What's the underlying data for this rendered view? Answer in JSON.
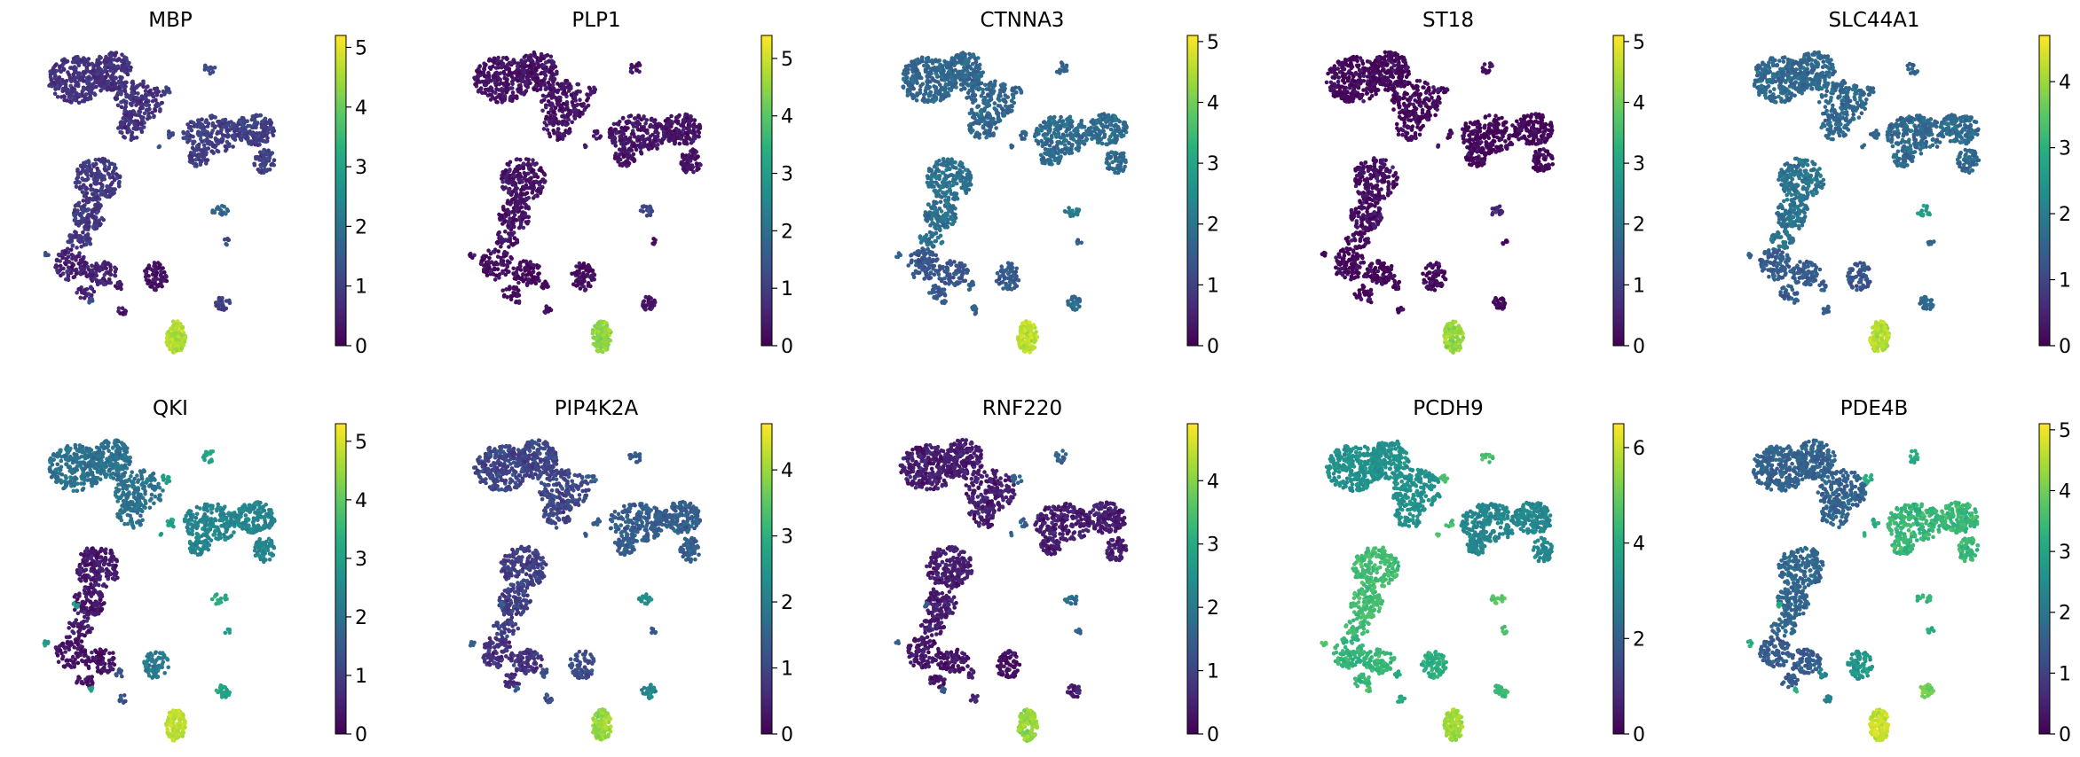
{
  "figure": {
    "description_type": "UMAP gene expression panel grid",
    "colormap": "viridis",
    "colormap_stops": [
      "#440154",
      "#472a7a",
      "#3b518b",
      "#2c718e",
      "#21908d",
      "#27ad81",
      "#5cc863",
      "#aadc32",
      "#fde725"
    ]
  },
  "chart_data": [
    {
      "type": "scatter",
      "title": "MBP",
      "vmin": 0,
      "vmax": 5.2,
      "ticks": [
        0,
        1,
        2,
        3,
        4,
        5
      ],
      "cluster_levels": {
        "A": 0.8,
        "B": 1.0,
        "C": 0.9,
        "D": 0.5,
        "E": 0.2,
        "F": 1.2,
        "G": 0.3,
        "H": 1.7,
        "I": 4.6,
        "J": 1.0
      }
    },
    {
      "type": "scatter",
      "title": "PLP1",
      "vmin": 0,
      "vmax": 5.4,
      "ticks": [
        0,
        1,
        2,
        3,
        4,
        5
      ],
      "cluster_levels": {
        "A": 0.3,
        "B": 0.3,
        "C": 0.3,
        "D": 0.2,
        "E": 0.2,
        "F": 0.3,
        "G": 0.2,
        "H": 1.2,
        "I": 4.5,
        "J": 0.3
      }
    },
    {
      "type": "scatter",
      "title": "CTNNA3",
      "vmin": 0,
      "vmax": 5.1,
      "ticks": [
        0,
        1,
        2,
        3,
        4,
        5
      ],
      "cluster_levels": {
        "A": 1.7,
        "B": 1.8,
        "C": 1.9,
        "D": 1.4,
        "E": 1.5,
        "F": 1.6,
        "G": 1.6,
        "H": 2.1,
        "I": 4.6,
        "J": 1.8
      }
    },
    {
      "type": "scatter",
      "title": "ST18",
      "vmin": 0,
      "vmax": 5.1,
      "ticks": [
        0,
        1,
        2,
        3,
        4,
        5
      ],
      "cluster_levels": {
        "A": 0.1,
        "B": 0.1,
        "C": 0.2,
        "D": 0.1,
        "E": 0.1,
        "F": 0.2,
        "G": 0.1,
        "H": 0.6,
        "I": 4.3,
        "J": 0.1
      }
    },
    {
      "type": "scatter",
      "title": "SLC44A1",
      "vmin": 0,
      "vmax": 4.7,
      "ticks": [
        0,
        1,
        2,
        3,
        4
      ],
      "cluster_levels": {
        "A": 1.6,
        "B": 1.6,
        "C": 1.8,
        "D": 1.4,
        "E": 1.3,
        "F": 1.5,
        "G": 1.4,
        "H": 2.6,
        "I": 4.2,
        "J": 1.6
      }
    },
    {
      "type": "scatter",
      "title": "QKI",
      "vmin": 0,
      "vmax": 5.3,
      "ticks": [
        0,
        1,
        2,
        3,
        4,
        5
      ],
      "cluster_levels": {
        "A": 2.0,
        "B": 2.4,
        "C": 0.4,
        "D": 0.3,
        "E": 2.2,
        "F": 3.0,
        "G": 1.4,
        "H": 3.3,
        "I": 4.8,
        "J": 3.2
      }
    },
    {
      "type": "scatter",
      "title": "PIP4K2A",
      "vmin": 0,
      "vmax": 4.7,
      "ticks": [
        0,
        1,
        2,
        3,
        4
      ],
      "cluster_levels": {
        "A": 1.0,
        "B": 1.4,
        "C": 0.9,
        "D": 0.7,
        "E": 1.1,
        "F": 1.4,
        "G": 1.1,
        "H": 2.3,
        "I": 4.0,
        "J": 2.2
      }
    },
    {
      "type": "scatter",
      "title": "RNF220",
      "vmin": 0,
      "vmax": 4.9,
      "ticks": [
        0,
        1,
        2,
        3,
        4
      ],
      "cluster_levels": {
        "A": 0.4,
        "B": 0.4,
        "C": 0.4,
        "D": 0.3,
        "E": 0.2,
        "F": 1.5,
        "G": 0.5,
        "H": 1.8,
        "I": 4.1,
        "J": 0.4
      }
    },
    {
      "type": "scatter",
      "title": "PCDH9",
      "vmin": 0,
      "vmax": 6.5,
      "ticks": [
        0,
        2,
        4,
        6
      ],
      "cluster_levels": {
        "A": 3.3,
        "B": 3.0,
        "C": 4.5,
        "D": 4.3,
        "E": 4.1,
        "F": 4.6,
        "G": 4.0,
        "H": 4.8,
        "I": 5.6,
        "J": 4.4
      }
    },
    {
      "type": "scatter",
      "title": "PDE4B",
      "vmin": 0,
      "vmax": 5.1,
      "ticks": [
        0,
        1,
        2,
        3,
        4,
        5
      ],
      "cluster_levels": {
        "A": 1.6,
        "B": 3.4,
        "C": 1.7,
        "D": 1.5,
        "E": 2.7,
        "F": 3.2,
        "G": 2.2,
        "H": 3.4,
        "I": 4.7,
        "J": 4.0
      }
    }
  ]
}
